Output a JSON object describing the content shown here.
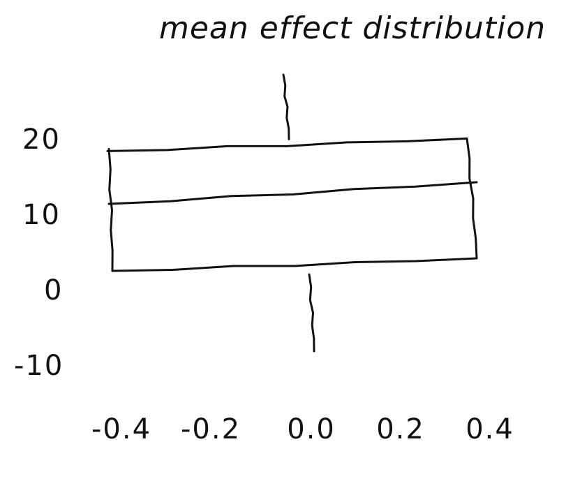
{
  "chart_data": {
    "type": "box",
    "title": "mean effect distribution",
    "xlabel": "",
    "ylabel": "",
    "xlim": [
      -0.4,
      0.4
    ],
    "ylim": [
      -10,
      20
    ],
    "x_ticks": [
      "-0.4",
      "-0.2",
      "0.0",
      "0.2",
      "0.4"
    ],
    "y_ticks": [
      "20",
      "10",
      "0",
      "-10"
    ],
    "box": {
      "x_start": -0.4,
      "x_end": 0.4,
      "q1": 0,
      "median": 10,
      "q3": 17,
      "whisker_low": -10,
      "whisker_high": 25
    },
    "grid": false,
    "style": "hand-drawn"
  }
}
